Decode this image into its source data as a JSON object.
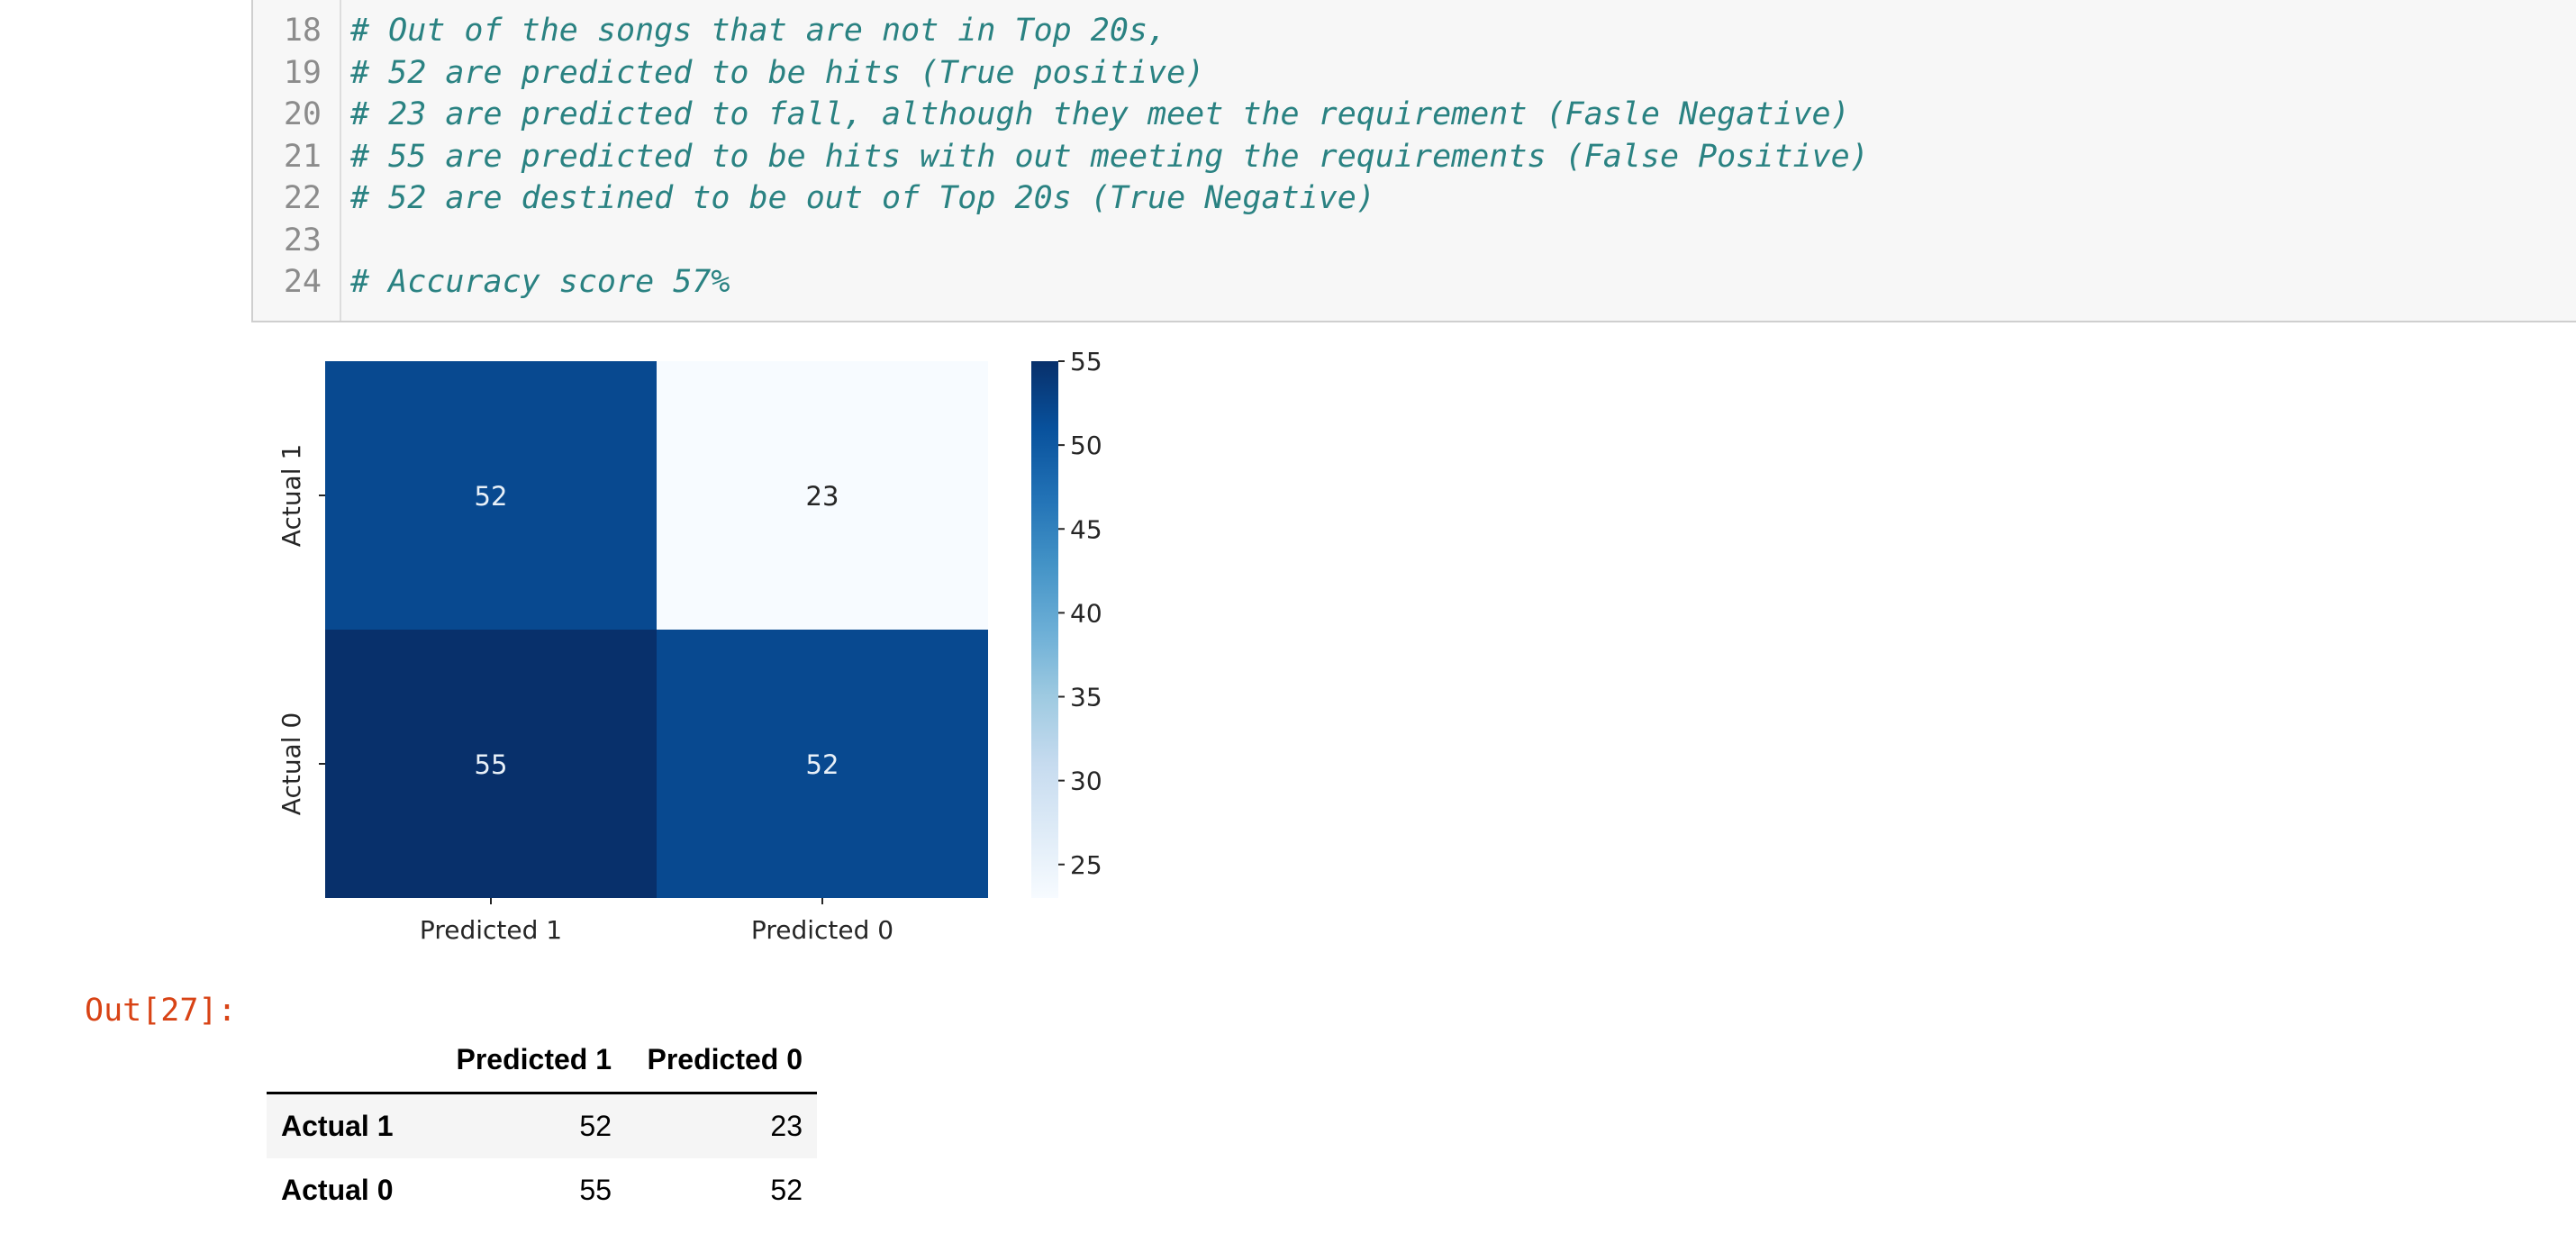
{
  "code_cell": {
    "partial_top_line_number": "17",
    "lines": [
      {
        "number": "18",
        "text": "# Out of the songs that are not in Top 20s,"
      },
      {
        "number": "19",
        "text": "# 52 are predicted to be hits (True positive)"
      },
      {
        "number": "20",
        "text": "# 23 are predicted to fall, although they meet the requirement (Fasle Negative)"
      },
      {
        "number": "21",
        "text": "# 55 are predicted to be hits with out meeting the requirements (False Positive)"
      },
      {
        "number": "22",
        "text": "# 52 are destined to be out of Top 20s (True Negative)"
      },
      {
        "number": "23",
        "text": ""
      },
      {
        "number": "24",
        "text": "# Accuracy score 57%"
      }
    ]
  },
  "chart_data": {
    "type": "heatmap",
    "rows": [
      "Actual 1",
      "Actual 0"
    ],
    "columns": [
      "Predicted 1",
      "Predicted 0"
    ],
    "values": [
      [
        52,
        23
      ],
      [
        55,
        52
      ]
    ],
    "annotations": [
      [
        "52",
        "23"
      ],
      [
        "55",
        "52"
      ]
    ],
    "colormap": "Blues",
    "colorbar": {
      "range": [
        23,
        55
      ],
      "ticks": [
        25,
        30,
        35,
        40,
        45,
        50,
        55
      ],
      "tick_labels": [
        "25",
        "30",
        "35",
        "40",
        "45",
        "50",
        "55"
      ],
      "low_color": "#f7fbff",
      "high_color": "#08306b"
    },
    "annotation_light_color": "#e8f0f8",
    "annotation_dark_color": "#262626"
  },
  "output": {
    "prompt": "Out[27]:",
    "table": {
      "columns": [
        "Predicted 1",
        "Predicted 0"
      ],
      "rows": [
        {
          "index": "Actual 1",
          "values": [
            "52",
            "23"
          ]
        },
        {
          "index": "Actual 0",
          "values": [
            "55",
            "52"
          ]
        }
      ]
    }
  }
}
